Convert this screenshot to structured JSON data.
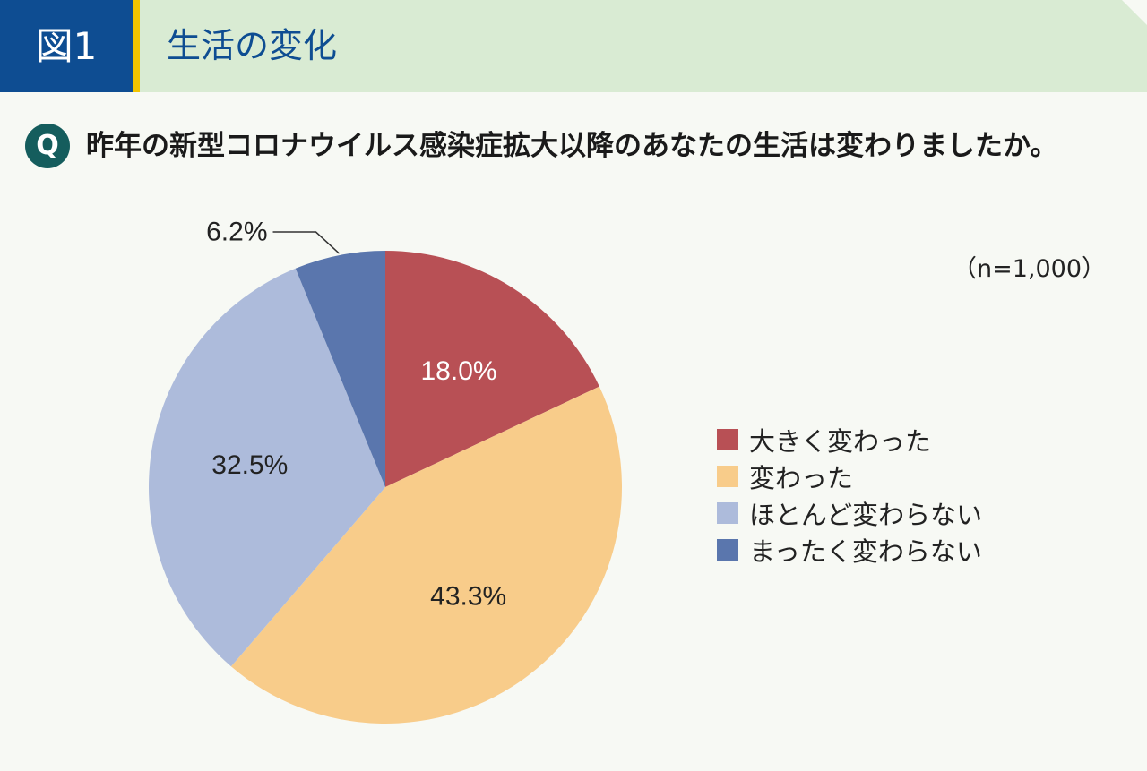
{
  "header": {
    "figure_label": "図1",
    "title": "生活の変化"
  },
  "question": {
    "badge": "Q",
    "text": "昨年の新型コロナウイルス感染症拡大以降のあなたの生活は変わりましたか。"
  },
  "chart_data": {
    "type": "pie",
    "sample_size_label": "（n=1,000）",
    "categories": [
      "大きく変わった",
      "変わった",
      "ほとんど変わらない",
      "まったく変わらない"
    ],
    "values": [
      18.0,
      43.3,
      32.5,
      6.2
    ],
    "value_labels": [
      "18.0%",
      "43.3%",
      "32.5%",
      "6.2%"
    ],
    "colors": [
      "#b85055",
      "#f8cc8a",
      "#adbbdb",
      "#5a76ad"
    ],
    "start_angle": "12 o'clock, clockwise",
    "legend_position": "right"
  }
}
